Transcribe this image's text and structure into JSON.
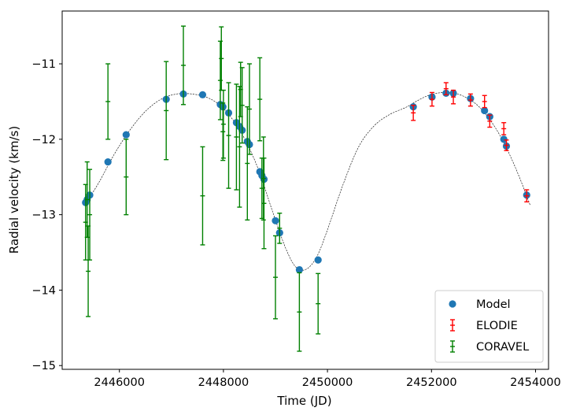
{
  "chart_data": {
    "type": "scatter",
    "xlabel": "Time (JD)",
    "ylabel": "Radial velocity (km/s)",
    "xlim": [
      2444900,
      2454250
    ],
    "ylim": [
      -15.05,
      -10.3
    ],
    "xticks": [
      2446000,
      2448000,
      2450000,
      2452000,
      2454000
    ],
    "xtick_labels": [
      "2446000",
      "2448000",
      "2450000",
      "2452000",
      "2454000"
    ],
    "yticks": [
      -15,
      -14,
      -13,
      -12,
      -11
    ],
    "ytick_labels": [
      "−15",
      "−14",
      "−13",
      "−12",
      "−11"
    ],
    "grid": false,
    "legend_position": "lower-right",
    "model_curve": {
      "style": "dashed",
      "color": "#000000",
      "x": [
        2445350,
        2445600,
        2445900,
        2446200,
        2446500,
        2446800,
        2447100,
        2447400,
        2447700,
        2447950,
        2448200,
        2448450,
        2448700,
        2448950,
        2449200,
        2449400,
        2449600,
        2449800,
        2450000,
        2450300,
        2450600,
        2450900,
        2451200,
        2451500,
        2451700,
        2451900,
        2452100,
        2452300,
        2452500,
        2452700,
        2452900,
        2453100,
        2453300,
        2453500,
        2453700,
        2453900
      ],
      "y": [
        -12.85,
        -12.58,
        -12.2,
        -11.88,
        -11.63,
        -11.47,
        -11.4,
        -11.4,
        -11.45,
        -11.56,
        -11.76,
        -12.05,
        -12.45,
        -12.97,
        -13.45,
        -13.7,
        -13.72,
        -13.55,
        -13.2,
        -12.6,
        -12.1,
        -11.82,
        -11.67,
        -11.58,
        -11.5,
        -11.43,
        -11.39,
        -11.38,
        -11.4,
        -11.46,
        -11.56,
        -11.72,
        -11.93,
        -12.2,
        -12.52,
        -12.88
      ]
    },
    "series": [
      {
        "name": "Model",
        "marker": "circle",
        "color": "#1f77b4",
        "points": [
          [
            2445350,
            -12.84
          ],
          [
            2445380,
            -12.8
          ],
          [
            2445430,
            -12.74
          ],
          [
            2445780,
            -12.3
          ],
          [
            2446130,
            -11.94
          ],
          [
            2446900,
            -11.47
          ],
          [
            2447230,
            -11.4
          ],
          [
            2447600,
            -11.41
          ],
          [
            2447940,
            -11.54
          ],
          [
            2447990,
            -11.57
          ],
          [
            2448100,
            -11.65
          ],
          [
            2448250,
            -11.78
          ],
          [
            2448310,
            -11.83
          ],
          [
            2448360,
            -11.88
          ],
          [
            2448460,
            -12.03
          ],
          [
            2448500,
            -12.07
          ],
          [
            2448700,
            -12.43
          ],
          [
            2448740,
            -12.48
          ],
          [
            2448780,
            -12.53
          ],
          [
            2449000,
            -13.08
          ],
          [
            2449080,
            -13.24
          ],
          [
            2449460,
            -13.73
          ],
          [
            2449820,
            -13.6
          ],
          [
            2451650,
            -11.57
          ],
          [
            2452010,
            -11.44
          ],
          [
            2452280,
            -11.39
          ],
          [
            2452420,
            -11.39
          ],
          [
            2452750,
            -11.46
          ],
          [
            2453020,
            -11.62
          ],
          [
            2453120,
            -11.7
          ],
          [
            2453390,
            -12.0
          ],
          [
            2453440,
            -12.09
          ],
          [
            2453830,
            -12.74
          ]
        ]
      },
      {
        "name": "ELODIE",
        "marker": "errorbar",
        "color": "#ff0000",
        "points": [
          [
            2451650,
            -11.65,
            0.1
          ],
          [
            2452010,
            -11.47,
            0.09
          ],
          [
            2452280,
            -11.33,
            0.08
          ],
          [
            2452420,
            -11.44,
            0.09
          ],
          [
            2452750,
            -11.48,
            0.08
          ],
          [
            2453020,
            -11.5,
            0.08
          ],
          [
            2453120,
            -11.76,
            0.08
          ],
          [
            2453390,
            -11.86,
            0.08
          ],
          [
            2453440,
            -12.08,
            0.07
          ],
          [
            2453830,
            -12.75,
            0.08
          ]
        ]
      },
      {
        "name": "CORAVEL",
        "marker": "errorbar",
        "color": "#008000",
        "points": [
          [
            2445350,
            -13.1,
            0.5
          ],
          [
            2445380,
            -12.8,
            0.5
          ],
          [
            2445400,
            -13.75,
            0.6
          ],
          [
            2445430,
            -13.0,
            0.6
          ],
          [
            2445780,
            -11.5,
            0.5
          ],
          [
            2446130,
            -12.5,
            0.5
          ],
          [
            2446900,
            -11.62,
            0.65
          ],
          [
            2447230,
            -11.02,
            0.52
          ],
          [
            2447600,
            -12.75,
            0.65
          ],
          [
            2447940,
            -11.22,
            0.52
          ],
          [
            2447960,
            -10.93,
            0.42
          ],
          [
            2447990,
            -11.9,
            0.38
          ],
          [
            2448000,
            -11.8,
            0.45
          ],
          [
            2448100,
            -11.95,
            0.7
          ],
          [
            2448250,
            -11.97,
            0.7
          ],
          [
            2448310,
            -12.1,
            0.8
          ],
          [
            2448330,
            -11.34,
            0.36
          ],
          [
            2448360,
            -11.55,
            0.5
          ],
          [
            2448460,
            -12.32,
            0.75
          ],
          [
            2448500,
            -11.6,
            0.6
          ],
          [
            2448700,
            -11.47,
            0.55
          ],
          [
            2448740,
            -12.65,
            0.4
          ],
          [
            2448770,
            -12.52,
            0.55
          ],
          [
            2448780,
            -12.85,
            0.6
          ],
          [
            2449000,
            -13.83,
            0.55
          ],
          [
            2449080,
            -13.18,
            0.2
          ],
          [
            2449460,
            -14.29,
            0.52
          ],
          [
            2449820,
            -14.18,
            0.4
          ]
        ]
      }
    ],
    "legend": [
      "Model",
      "ELODIE",
      "CORAVEL"
    ]
  }
}
